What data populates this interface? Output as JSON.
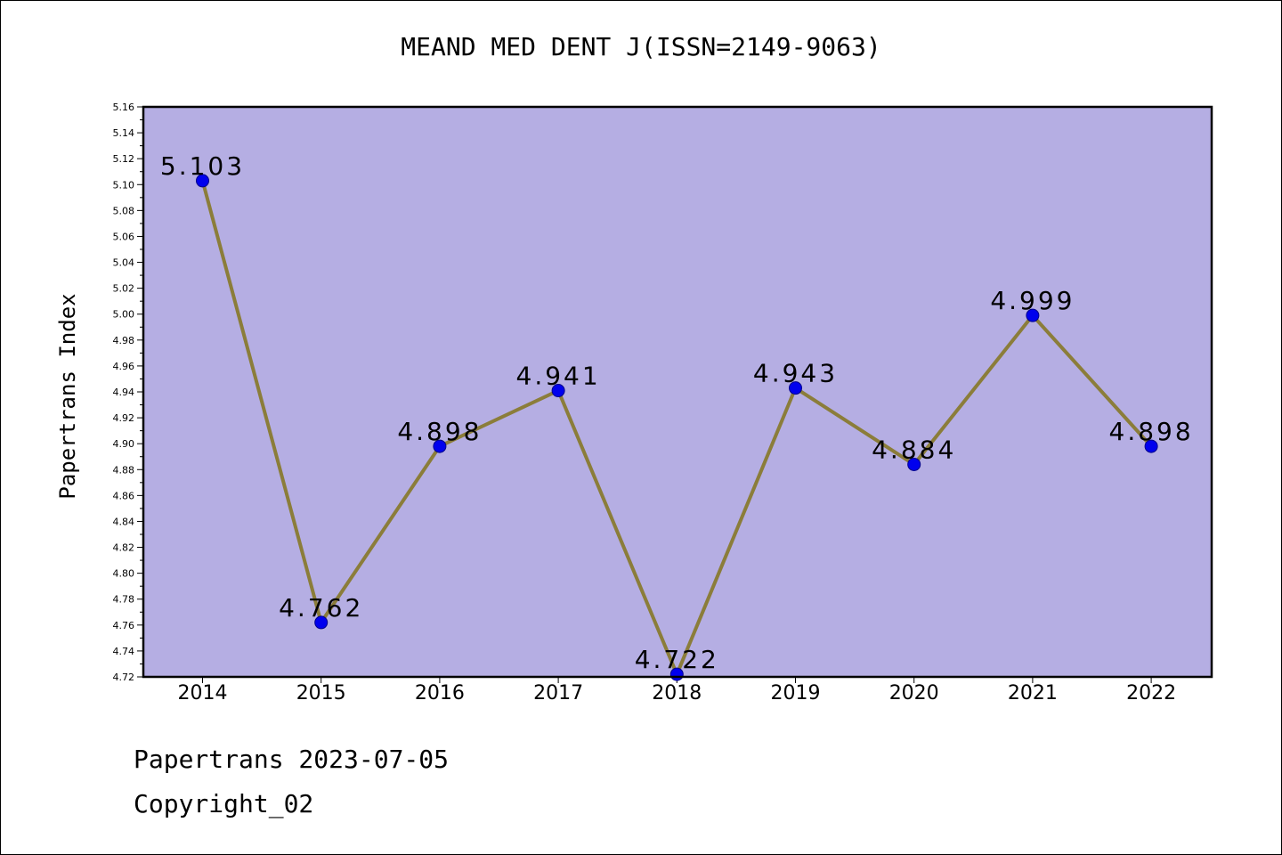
{
  "page": {
    "title": "MEAND MED DENT J(ISSN=2149-9063)",
    "footer_line1": "Papertrans 2023-07-05",
    "footer_line2": "Copyright_02"
  },
  "chart_data": {
    "type": "line",
    "title": "MEAND MED DENT J(ISSN=2149-9063)",
    "xlabel": "",
    "ylabel": "Papertrans Index",
    "categories": [
      "2014",
      "2015",
      "2016",
      "2017",
      "2018",
      "2019",
      "2020",
      "2021",
      "2022"
    ],
    "series": [
      {
        "values": [
          5.103,
          4.762,
          4.898,
          4.941,
          4.722,
          4.943,
          4.884,
          4.999,
          4.898
        ],
        "labels": [
          "5.103",
          "4.762",
          "4.898",
          "4.941",
          "4.722",
          "4.943",
          "4.884",
          "4.999",
          "4.898"
        ]
      }
    ],
    "ylim": [
      4.72,
      5.16
    ],
    "yticks": [
      "4.72",
      "4.74",
      "4.76",
      "4.78",
      "4.80",
      "4.82",
      "4.84",
      "4.86",
      "4.88",
      "4.90",
      "4.92",
      "4.94",
      "4.96",
      "4.98",
      "5.00",
      "5.02",
      "5.04",
      "5.06",
      "5.08",
      "5.10",
      "5.12",
      "5.14",
      "5.16"
    ],
    "grid": false,
    "colors": {
      "plot_background": "#b5aee3",
      "line": "#8b7d3a",
      "marker": "#0000ee",
      "marker_edge": "#00008b"
    }
  }
}
